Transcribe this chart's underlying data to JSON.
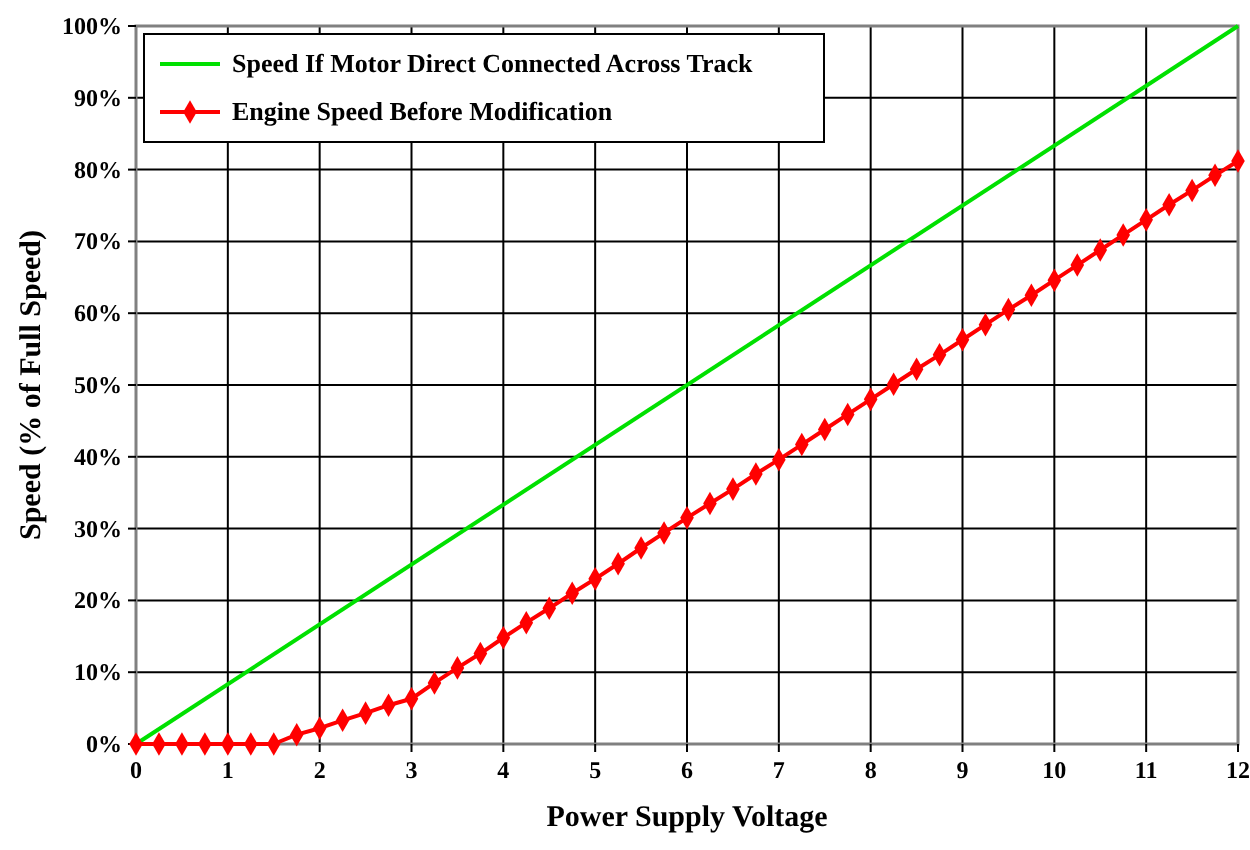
{
  "chart_data": {
    "type": "line",
    "xlabel": "Power Supply Voltage",
    "ylabel": "Speed (% of Full Speed)",
    "xlim": [
      0,
      12
    ],
    "xticks": [
      0,
      1,
      2,
      3,
      4,
      5,
      6,
      7,
      8,
      9,
      10,
      11,
      12
    ],
    "ylim": [
      0,
      100
    ],
    "yticks": [
      {
        "value": 0,
        "label": "0%"
      },
      {
        "value": 10,
        "label": "10%"
      },
      {
        "value": 20,
        "label": "20%"
      },
      {
        "value": 30,
        "label": "30%"
      },
      {
        "value": 40,
        "label": "40%"
      },
      {
        "value": 50,
        "label": "50%"
      },
      {
        "value": 60,
        "label": "60%"
      },
      {
        "value": 70,
        "label": "70%"
      },
      {
        "value": 80,
        "label": "80%"
      },
      {
        "value": 90,
        "label": "90%"
      },
      {
        "value": 100,
        "label": "100%"
      }
    ],
    "grid": true,
    "legend": "top left",
    "series": [
      {
        "name": "Speed If Motor Direct Connected Across Track",
        "color": "#00e000",
        "marker": "none",
        "x": [
          0,
          12
        ],
        "values": [
          0,
          100
        ]
      },
      {
        "name": "Engine Speed Before Modification",
        "color": "#ff0000",
        "marker": "diamond",
        "x": [
          0,
          0.25,
          0.5,
          0.75,
          1,
          1.25,
          1.5,
          1.75,
          2,
          2.25,
          2.5,
          2.75,
          3,
          3.25,
          3.5,
          3.75,
          4,
          4.25,
          4.5,
          4.75,
          5,
          5.25,
          5.5,
          5.75,
          6,
          6.25,
          6.5,
          6.75,
          7,
          7.25,
          7.5,
          7.75,
          8,
          8.25,
          8.5,
          8.75,
          9,
          9.25,
          9.5,
          9.75,
          10,
          10.25,
          10.5,
          10.75,
          11,
          11.25,
          11.5,
          11.75,
          12
        ],
        "values": [
          0,
          0,
          0,
          0,
          0,
          0,
          0,
          1.3,
          2.2,
          3.3,
          4.3,
          5.4,
          6.3,
          8.5,
          10.6,
          12.6,
          14.8,
          16.9,
          18.9,
          21,
          23,
          25.1,
          27.3,
          29.4,
          31.5,
          33.5,
          35.5,
          37.6,
          39.6,
          41.7,
          43.8,
          45.9,
          48,
          50.1,
          52.2,
          54.2,
          56.3,
          58.4,
          60.5,
          62.5,
          64.6,
          66.7,
          68.8,
          70.9,
          73,
          75.1,
          77.1,
          79.2,
          81.2
        ]
      }
    ]
  }
}
